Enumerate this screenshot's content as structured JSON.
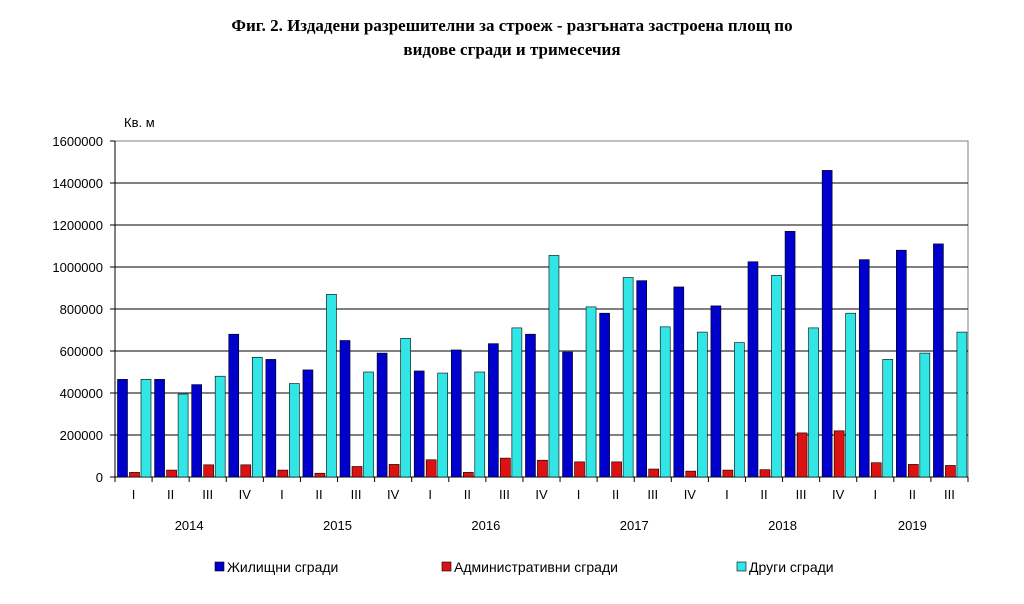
{
  "title": {
    "line1": "Фиг. 2. Издадени разрешителни за строеж - разгъната застроена площ по",
    "line2": "видове сгради и тримесечия"
  },
  "chart_data": {
    "type": "bar",
    "ylabel": "Кв. м",
    "ylim": [
      0,
      1600000
    ],
    "yticks": [
      0,
      200000,
      400000,
      600000,
      800000,
      1000000,
      1200000,
      1400000,
      1600000
    ],
    "grid": true,
    "legend_position": "bottom",
    "categories": [
      "I",
      "II",
      "III",
      "IV",
      "I",
      "II",
      "III",
      "IV",
      "I",
      "II",
      "III",
      "IV",
      "I",
      "II",
      "III",
      "IV",
      "I",
      "II",
      "III",
      "IV",
      "I",
      "II",
      "III"
    ],
    "years": [
      {
        "label": "2014",
        "start": 0,
        "count": 4
      },
      {
        "label": "2015",
        "start": 4,
        "count": 4
      },
      {
        "label": "2016",
        "start": 8,
        "count": 4
      },
      {
        "label": "2017",
        "start": 12,
        "count": 4
      },
      {
        "label": "2018",
        "start": 16,
        "count": 4
      },
      {
        "label": "2019",
        "start": 20,
        "count": 3
      }
    ],
    "series": [
      {
        "name": "Жилищни сгради",
        "color": "#0000cc",
        "values": [
          465000,
          465000,
          440000,
          680000,
          560000,
          510000,
          650000,
          590000,
          505000,
          605000,
          635000,
          680000,
          595000,
          780000,
          935000,
          905000,
          815000,
          1025000,
          1170000,
          1460000,
          1035000,
          1080000,
          1110000
        ]
      },
      {
        "name": "Административни  сгради",
        "color": "#dd1111",
        "values": [
          22000,
          33000,
          58000,
          58000,
          33000,
          18000,
          50000,
          60000,
          82000,
          22000,
          90000,
          80000,
          72000,
          72000,
          38000,
          28000,
          33000,
          35000,
          210000,
          220000,
          68000,
          60000,
          55000
        ]
      },
      {
        "name": "Други сгради",
        "color": "#33e6e6",
        "values": [
          465000,
          395000,
          480000,
          570000,
          445000,
          870000,
          500000,
          660000,
          495000,
          500000,
          710000,
          1055000,
          810000,
          950000,
          715000,
          690000,
          640000,
          960000,
          710000,
          780000,
          560000,
          590000,
          690000
        ]
      }
    ]
  }
}
